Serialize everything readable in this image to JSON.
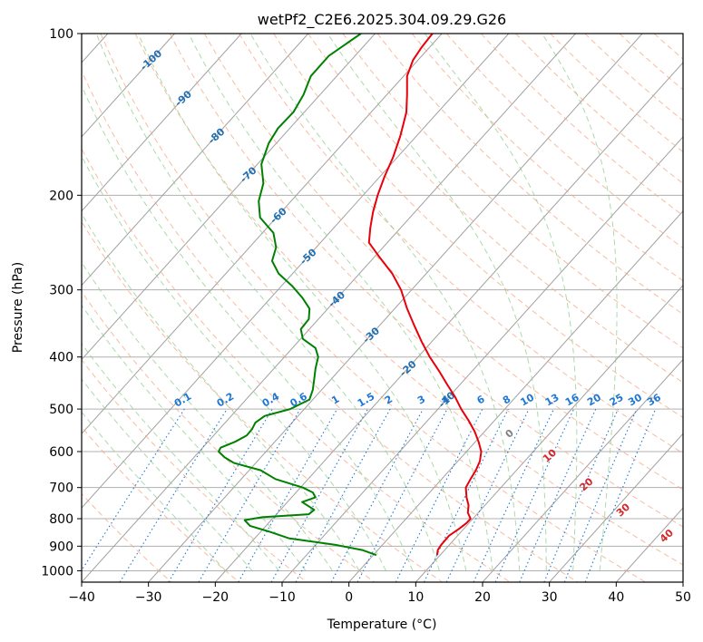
{
  "chart_data": {
    "type": "line",
    "title": "wetPf2_C2E6.2025.304.09.29.G26",
    "xlabel": "Temperature (°C)",
    "ylabel": "Pressure (hPa)",
    "xlim": [
      -40,
      50
    ],
    "ylim": [
      1050,
      100
    ],
    "x_ticks": [
      "−40",
      "−30",
      "−20",
      "−10",
      "0",
      "10",
      "20",
      "30",
      "40",
      "50"
    ],
    "x_tick_values": [
      -40,
      -30,
      -20,
      -10,
      0,
      10,
      20,
      30,
      40,
      50
    ],
    "y_ticks": [
      "100",
      "200",
      "300",
      "400",
      "500",
      "600",
      "700",
      "800",
      "900",
      "1000"
    ],
    "y_tick_values": [
      100,
      200,
      300,
      400,
      500,
      600,
      700,
      800,
      900,
      1000
    ],
    "y_scale": "log",
    "grid": true,
    "colors": {
      "temperature": "#e8000b",
      "dewpoint": "#008000",
      "isotherm": "#a0a0a0",
      "dry_adiabat": "#f4a582",
      "moist_adiabat": "#8fce8f",
      "mixing_ratio": "#1f77d4",
      "isotherm_label": "#1f6fb2",
      "dry_adiabat_label": "#d62728",
      "zero_label": "#808080"
    },
    "series": [
      {
        "name": "temperature",
        "pressure": [
          935,
          915,
          895,
          860,
          835,
          815,
          800,
          780,
          755,
          730,
          700,
          675,
          650,
          625,
          600,
          575,
          550,
          525,
          500,
          475,
          450,
          425,
          400,
          375,
          350,
          325,
          300,
          280,
          260,
          245,
          230,
          215,
          200,
          185,
          170,
          155,
          140,
          130,
          120,
          112,
          106,
          100
        ],
        "values": [
          13.2,
          13.3,
          13.8,
          15.0,
          16.5,
          17.6,
          18.2,
          17.8,
          17.9,
          17.6,
          17.5,
          18.2,
          19.0,
          19.6,
          19.8,
          19.4,
          18.8,
          17.9,
          16.8,
          15.9,
          14.7,
          13.5,
          12.1,
          10.9,
          9.8,
          8.7,
          7.8,
          6.5,
          4.5,
          3.0,
          3.2,
          3.6,
          4.3,
          5.3,
          6.6,
          7.7,
          8.6,
          8.7,
          8.7,
          9.6,
          10.9,
          12.5
        ]
      },
      {
        "name": "dewpoint",
        "pressure": [
          935,
          915,
          895,
          870,
          845,
          825,
          805,
          795,
          785,
          770,
          745,
          730,
          715,
          700,
          675,
          650,
          630,
          615,
          600,
          590,
          575,
          560,
          545,
          530,
          515,
          500,
          480,
          460,
          440,
          420,
          400,
          385,
          370,
          355,
          340,
          325,
          310,
          295,
          280,
          265,
          250,
          235,
          220,
          205,
          190,
          175,
          160,
          150,
          140,
          130,
          120,
          110,
          100
        ],
        "values": [
          4.1,
          2.0,
          -2.0,
          -9.0,
          -12.0,
          -14.8,
          -15.6,
          -13.0,
          -6.0,
          -5.2,
          -7.0,
          -5.0,
          -5.4,
          -6.9,
          -11.0,
          -13.2,
          -17.2,
          -18.6,
          -19.5,
          -19.2,
          -17.0,
          -15.3,
          -14.5,
          -14.0,
          -12.6,
          -8.8,
          -5.9,
          -5.4,
          -5.2,
          -5.0,
          -4.6,
          -5.0,
          -6.9,
          -7.2,
          -6.0,
          -5.9,
          -7.0,
          -8.5,
          -10.5,
          -11.5,
          -10.9,
          -11.3,
          -13.3,
          -13.5,
          -12.8,
          -13.1,
          -12.0,
          -10.6,
          -8.3,
          -6.8,
          -5.7,
          -3.0,
          1.8
        ]
      }
    ],
    "isotherm_labels": [
      "-100",
      "-90",
      "-80",
      "-70",
      "-60",
      "-50",
      "-40",
      "-30",
      "-20",
      "-10"
    ],
    "isotherm_label_values": [
      -100,
      -90,
      -80,
      -70,
      -60,
      -50,
      -40,
      -30,
      -20,
      -10
    ],
    "mixing_ratio_labels": [
      "0.1",
      "0.2",
      "0.4",
      "0.6",
      "1",
      "1.5",
      "2",
      "3",
      "4",
      "6",
      "8",
      "10",
      "13",
      "16",
      "20",
      "25",
      "30",
      "36"
    ],
    "mixing_ratio_values": [
      0.1,
      0.2,
      0.4,
      0.6,
      1,
      1.5,
      2,
      3,
      4,
      6,
      8,
      10,
      13,
      16,
      20,
      25,
      30,
      36
    ],
    "dry_adiabat_labels": [
      "0",
      "10",
      "20",
      "30",
      "40"
    ],
    "dry_adiabat_label_values": [
      0,
      10,
      20,
      30,
      40
    ]
  }
}
